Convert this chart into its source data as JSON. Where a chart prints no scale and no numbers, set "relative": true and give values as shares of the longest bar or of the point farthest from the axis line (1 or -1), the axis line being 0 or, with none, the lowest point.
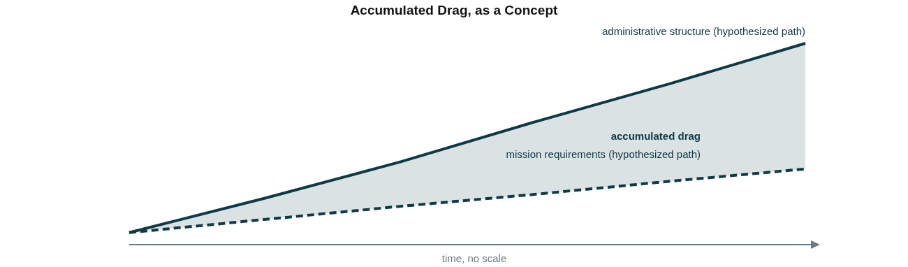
{
  "chart_data": {
    "type": "line",
    "title": "Accumulated Drag, as a Concept",
    "xlabel": "time, no scale",
    "relative": true,
    "categories": [
      null,
      null,
      null,
      null,
      null,
      null
    ],
    "series": [
      {
        "name": "administrative structure (hypothesized path)",
        "color": "#0e3a46",
        "values": [
          0.06,
          0.23,
          0.41,
          0.61,
          0.8,
          1
        ],
        "lower": [
          0.06,
          0.125,
          0.19,
          0.25,
          0.315,
          0.376
        ],
        "upper": [
          0.06,
          0.23,
          0.41,
          0.61,
          0.8,
          1
        ]
      },
      {
        "name": "mission requirements (hypothesized path)",
        "color": "#0e3a46",
        "line_style": "dashed",
        "values": [
          0.06,
          0.125,
          0.19,
          0.25,
          0.315,
          0.376
        ]
      }
    ],
    "annotations": [
      "accumulated drag"
    ],
    "marker": "none"
  }
}
